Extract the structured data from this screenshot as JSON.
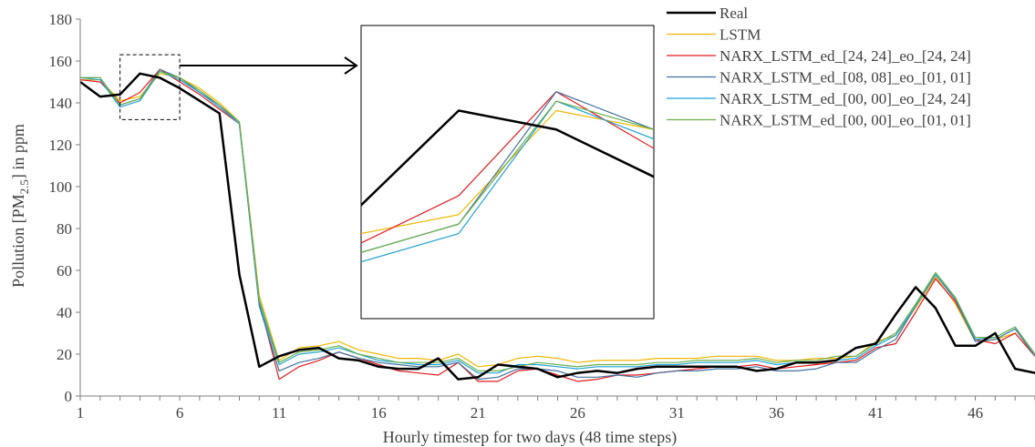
{
  "chart_data": {
    "type": "line",
    "title": "",
    "xlabel": "Hourly timestep for two days (48 time steps)",
    "ylabel_parts": [
      "Pollution [PM",
      "2.5",
      "] in ppm"
    ],
    "x": [
      1,
      2,
      3,
      4,
      5,
      6,
      7,
      8,
      9,
      10,
      11,
      12,
      13,
      14,
      15,
      16,
      17,
      18,
      19,
      20,
      21,
      22,
      23,
      24,
      25,
      26,
      27,
      28,
      29,
      30,
      31,
      32,
      33,
      34,
      35,
      36,
      37,
      38,
      39,
      40,
      41,
      42,
      43,
      44,
      45,
      46,
      47,
      48,
      49
    ],
    "x_tick_labels": [
      "1",
      "6",
      "11",
      "16",
      "21",
      "26",
      "31",
      "36",
      "41",
      "46"
    ],
    "y_tick_labels": [
      "0",
      "20",
      "40",
      "60",
      "80",
      "100",
      "120",
      "140",
      "160",
      "180"
    ],
    "xlim": [
      1,
      49
    ],
    "ylim": [
      0,
      180
    ],
    "grid": false,
    "legend_position": "top-right",
    "series": [
      {
        "name": "Real",
        "color": "#000000",
        "width": 2.5,
        "values": [
          150,
          143,
          144,
          154,
          152,
          147,
          141,
          135,
          58,
          14,
          19,
          22,
          23,
          18,
          17,
          14,
          13,
          13,
          18,
          8,
          9,
          15,
          14,
          13,
          9,
          11,
          12,
          11,
          13,
          14,
          14,
          14,
          14,
          14,
          12,
          13,
          16,
          16,
          17,
          23,
          25,
          39,
          52,
          42,
          24,
          24,
          30,
          13,
          11
        ]
      },
      {
        "name": "LSTM",
        "color": "#f2b705",
        "width": 1.2,
        "values": [
          151,
          151,
          141,
          143,
          154,
          152,
          147,
          140,
          131,
          48,
          17,
          23,
          24,
          26,
          22,
          20,
          18,
          18,
          17,
          20,
          14,
          15,
          18,
          19,
          18,
          16,
          17,
          17,
          17,
          18,
          18,
          18,
          19,
          19,
          19,
          17,
          17,
          18,
          18,
          19,
          26,
          29,
          42,
          57,
          44,
          26,
          27,
          30,
          19
        ]
      },
      {
        "name": "NARX_LSTM_ed_[24, 24]_eo_[24, 24]",
        "color": "#e41a1c",
        "width": 1.2,
        "values": [
          151,
          150,
          140,
          145,
          156,
          150,
          144,
          137,
          130,
          45,
          8,
          14,
          17,
          21,
          18,
          15,
          12,
          11,
          10,
          16,
          7,
          7,
          12,
          13,
          10,
          7,
          8,
          10,
          10,
          11,
          12,
          13,
          14,
          14,
          15,
          13,
          14,
          15,
          16,
          17,
          23,
          25,
          40,
          56,
          45,
          27,
          25,
          30,
          19
        ]
      },
      {
        "name": "NARX_LSTM_ed_[08, 08]_eo_[01, 01]",
        "color": "#41729f",
        "width": 1.2,
        "values": [
          152,
          152,
          139,
          142,
          156,
          152,
          145,
          139,
          130,
          43,
          12,
          16,
          18,
          21,
          18,
          16,
          15,
          14,
          14,
          16,
          8,
          9,
          13,
          13,
          12,
          9,
          9,
          10,
          9,
          11,
          12,
          12,
          13,
          13,
          14,
          12,
          12,
          13,
          16,
          16,
          22,
          27,
          43,
          58,
          46,
          26,
          27,
          32,
          19
        ]
      },
      {
        "name": "NARX_LSTM_ed_[00, 00]_eo_[24, 24]",
        "color": "#1fa2d6",
        "width": 1.2,
        "values": [
          152,
          151,
          138,
          141,
          155,
          151,
          145,
          138,
          130,
          44,
          15,
          20,
          21,
          23,
          20,
          17,
          16,
          15,
          15,
          17,
          11,
          11,
          15,
          15,
          14,
          13,
          14,
          14,
          14,
          15,
          15,
          16,
          16,
          16,
          17,
          15,
          16,
          16,
          17,
          18,
          24,
          29,
          43,
          58,
          47,
          27,
          28,
          33,
          20
        ]
      },
      {
        "name": "NARX_LSTM_ed_[00, 00]_eo_[01, 01]",
        "color": "#6ab04c",
        "width": 1.2,
        "values": [
          152,
          152,
          139,
          142,
          155,
          152,
          146,
          139,
          131,
          46,
          16,
          21,
          22,
          24,
          20,
          18,
          16,
          16,
          16,
          18,
          12,
          12,
          14,
          16,
          15,
          14,
          15,
          15,
          15,
          16,
          16,
          17,
          17,
          17,
          18,
          16,
          17,
          17,
          19,
          19,
          25,
          30,
          44,
          59,
          47,
          28,
          28,
          33,
          20
        ]
      }
    ],
    "inset": {
      "x_range": [
        3,
        6
      ],
      "y_range": [
        132,
        163
      ]
    }
  }
}
